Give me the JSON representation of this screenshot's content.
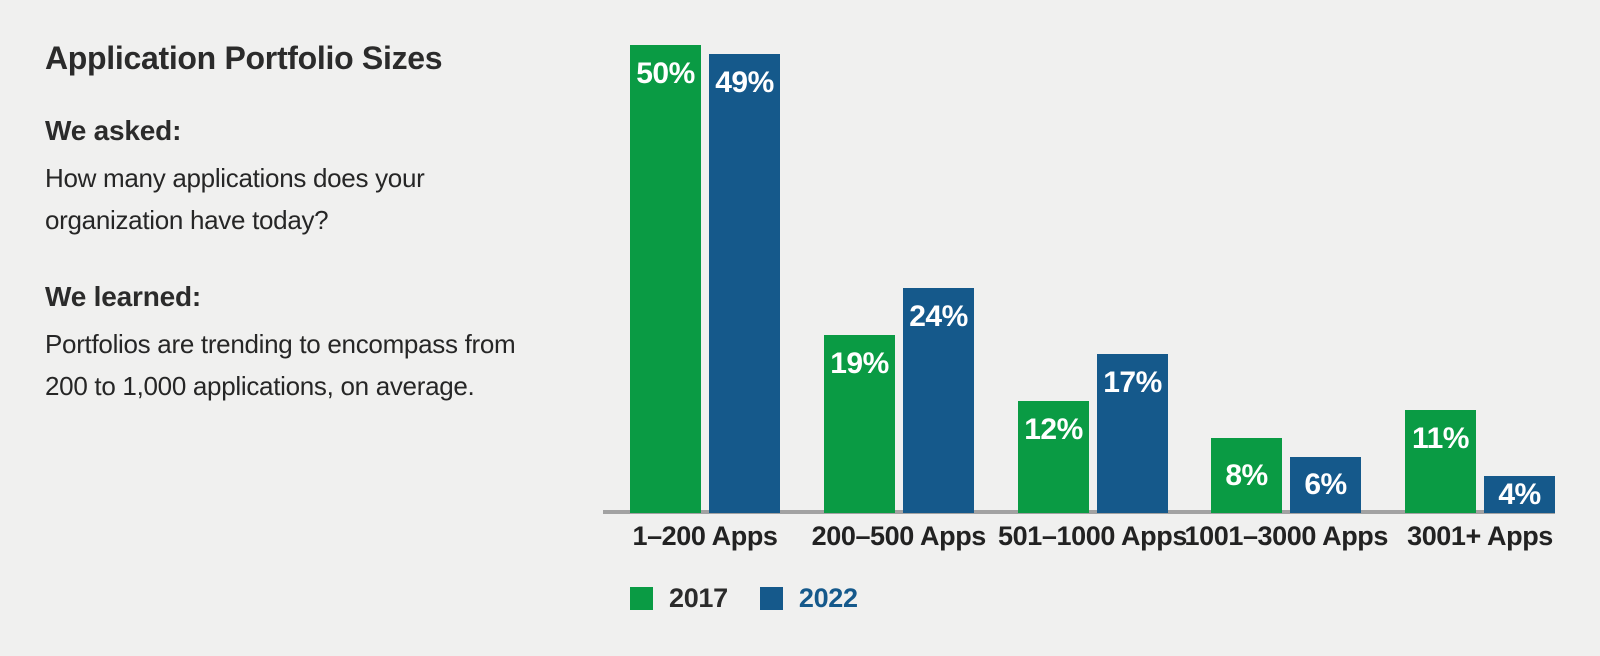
{
  "panel": {
    "title": "Application Portfolio Sizes",
    "asked_heading": "We asked:",
    "asked_text": "How many applications does your\norganization have today?",
    "learned_heading": "We learned:",
    "learned_text": "Portfolios are trending to encompass from\n200 to 1,000 applications, on average."
  },
  "chart_data": {
    "type": "bar",
    "title": "Application Portfolio Sizes",
    "categories": [
      "1–200 Apps",
      "200–500 Apps",
      "501–1000 Apps",
      "1001–3000 Apps",
      "3001+ Apps"
    ],
    "series": [
      {
        "name": "2017",
        "color": "#0a9b44",
        "label_color": "#2b2b2b",
        "values": [
          50,
          19,
          12,
          8,
          11
        ]
      },
      {
        "name": "2022",
        "color": "#15598b",
        "label_color": "#15598b",
        "values": [
          49,
          24,
          17,
          6,
          4
        ]
      }
    ],
    "value_suffix": "%",
    "xlabel": "",
    "ylabel": "",
    "ylim": [
      0,
      50
    ],
    "grid": false,
    "value_labels": "inside-top",
    "legend_position": "bottom-left",
    "colors": {
      "background": "#f0f0ef",
      "axis_line": "#a2a2a2",
      "value_text": "#ffffff",
      "text": "#2b2b2b"
    }
  }
}
